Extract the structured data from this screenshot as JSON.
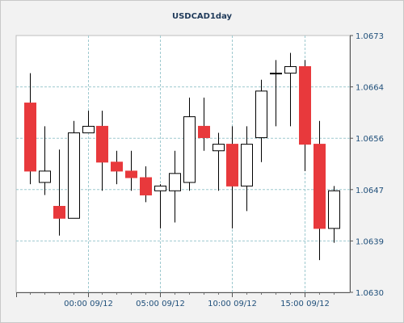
{
  "chart_data": {
    "type": "candlestick",
    "title": "USDCAD1day",
    "x_tick_labels": [
      "00:00 09/12",
      "05:00 09/12",
      "10:00 09/12",
      "15:00 09/12"
    ],
    "y_tick_labels": [
      "1.0673",
      "1.0664",
      "1.0656",
      "1.0647",
      "1.0639",
      "1.0630"
    ],
    "ylim": [
      1.063,
      1.0673
    ],
    "grid": true,
    "colors": {
      "bear": "#e8393c",
      "bull": "#ffffff",
      "wick": "#000000",
      "grid": "#9ec9cf"
    },
    "candles": [
      {
        "open": 1.06617,
        "high": 1.06667,
        "low": 1.06481,
        "close": 1.06503
      },
      {
        "open": 1.06484,
        "high": 1.06578,
        "low": 1.06463,
        "close": 1.06503
      },
      {
        "open": 1.06444,
        "high": 1.06539,
        "low": 1.06395,
        "close": 1.06424
      },
      {
        "open": 1.06424,
        "high": 1.06587,
        "low": 1.06424,
        "close": 1.06567
      },
      {
        "open": 1.06567,
        "high": 1.06604,
        "low": 1.06567,
        "close": 1.06578
      },
      {
        "open": 1.06578,
        "high": 1.06604,
        "low": 1.0647,
        "close": 1.06518
      },
      {
        "open": 1.06518,
        "high": 1.06537,
        "low": 1.06481,
        "close": 1.06503
      },
      {
        "open": 1.06503,
        "high": 1.06537,
        "low": 1.0647,
        "close": 1.06492
      },
      {
        "open": 1.06492,
        "high": 1.06511,
        "low": 1.06451,
        "close": 1.06463
      },
      {
        "open": 1.0647,
        "high": 1.06481,
        "low": 1.06407,
        "close": 1.06478
      },
      {
        "open": 1.0647,
        "high": 1.06537,
        "low": 1.06417,
        "close": 1.06499
      },
      {
        "open": 1.06484,
        "high": 1.06626,
        "low": 1.0647,
        "close": 1.06594
      },
      {
        "open": 1.06578,
        "high": 1.06626,
        "low": 1.06537,
        "close": 1.06559
      },
      {
        "open": 1.06537,
        "high": 1.06567,
        "low": 1.0647,
        "close": 1.06548
      },
      {
        "open": 1.06548,
        "high": 1.06578,
        "low": 1.06407,
        "close": 1.06478
      },
      {
        "open": 1.06478,
        "high": 1.06578,
        "low": 1.06436,
        "close": 1.06548
      },
      {
        "open": 1.06559,
        "high": 1.06656,
        "low": 1.06518,
        "close": 1.06637
      },
      {
        "open": 1.06667,
        "high": 1.06689,
        "low": 1.06578,
        "close": 1.06667
      },
      {
        "open": 1.06667,
        "high": 1.06701,
        "low": 1.06578,
        "close": 1.06678
      },
      {
        "open": 1.06678,
        "high": 1.06689,
        "low": 1.06503,
        "close": 1.06548
      },
      {
        "open": 1.06548,
        "high": 1.06587,
        "low": 1.06354,
        "close": 1.06407
      },
      {
        "open": 1.06407,
        "high": 1.06478,
        "low": 1.06383,
        "close": 1.0647
      }
    ]
  }
}
